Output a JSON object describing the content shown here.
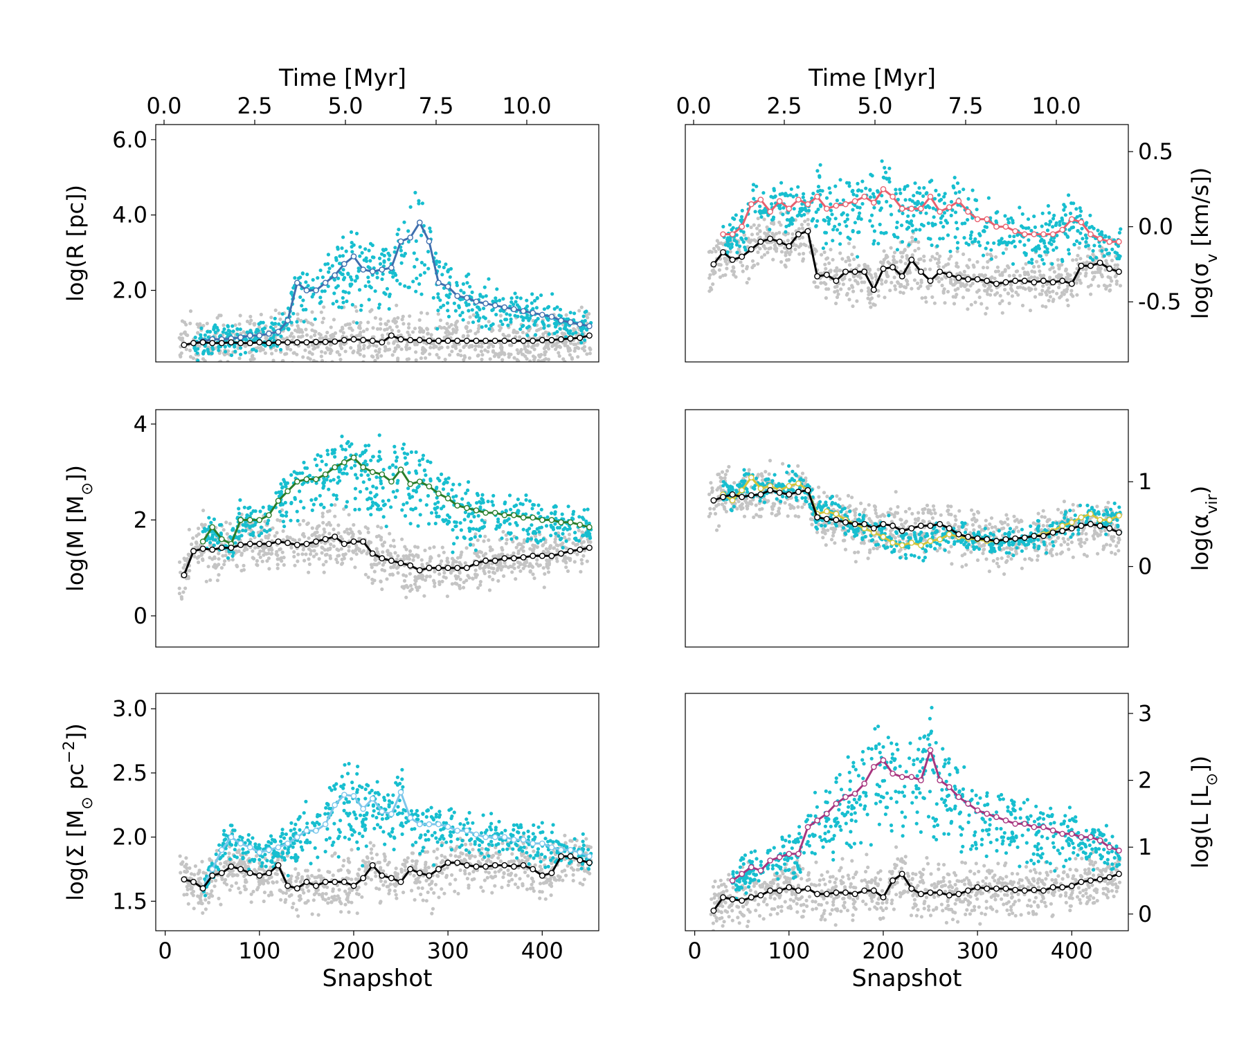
{
  "colors": {
    "gray": "#c4c4c4",
    "cyan": "#17becf",
    "black": "#000000",
    "R": "#3f6fae",
    "sigma": "#e8616f",
    "M": "#2a7d2a",
    "alpha": "#d4c43a",
    "Sigma": "#7cc6ea",
    "L": "#a8367f"
  },
  "chart_data": [
    {
      "id": "R",
      "type": "scatter",
      "ylabel": "log(R [pc])",
      "xlabel": "",
      "time_label": "Time [Myr]",
      "ylim": [
        0.1,
        6.4
      ],
      "xlim": [
        -10,
        460
      ],
      "yticks": [
        "6.0",
        "4.0",
        "2.0"
      ],
      "ytick_values": [
        6.0,
        4.0,
        2.0
      ],
      "xticks": [],
      "time_ticks": [
        "0.0",
        "2.5",
        "5.0",
        "7.5",
        "10.0"
      ],
      "median_x": [
        20,
        30,
        40,
        50,
        60,
        70,
        80,
        90,
        100,
        110,
        120,
        130,
        140,
        150,
        160,
        170,
        180,
        190,
        200,
        210,
        220,
        230,
        240,
        250,
        260,
        270,
        280,
        290,
        300,
        310,
        320,
        330,
        340,
        350,
        360,
        370,
        380,
        390,
        400,
        410,
        420,
        430,
        440,
        450
      ],
      "median_y": [
        0.55,
        0.6,
        0.62,
        0.6,
        0.6,
        0.62,
        0.6,
        0.6,
        0.62,
        0.6,
        0.62,
        0.62,
        0.62,
        0.62,
        0.63,
        0.63,
        0.64,
        0.68,
        0.7,
        0.68,
        0.66,
        0.62,
        0.8,
        0.7,
        0.68,
        0.68,
        0.66,
        0.66,
        0.66,
        0.66,
        0.66,
        0.66,
        0.66,
        0.66,
        0.66,
        0.66,
        0.66,
        0.66,
        0.68,
        0.68,
        0.7,
        0.72,
        0.74,
        0.8
      ],
      "top_x": [
        30,
        40,
        50,
        60,
        70,
        80,
        90,
        100,
        110,
        120,
        130,
        140,
        150,
        160,
        170,
        180,
        190,
        200,
        210,
        220,
        230,
        240,
        250,
        260,
        270,
        280,
        290,
        300,
        310,
        320,
        330,
        340,
        350,
        360,
        370,
        380,
        390,
        400,
        410,
        420,
        430,
        440,
        450
      ],
      "top_y": [
        0.6,
        0.65,
        0.7,
        0.7,
        0.72,
        0.75,
        0.8,
        0.8,
        0.85,
        0.9,
        1.2,
        2.2,
        2.0,
        2.0,
        2.2,
        2.4,
        2.7,
        2.9,
        2.55,
        2.5,
        2.55,
        2.6,
        3.3,
        3.4,
        3.8,
        3.3,
        2.2,
        2.1,
        1.85,
        1.8,
        1.7,
        1.65,
        1.6,
        1.55,
        1.5,
        1.45,
        1.4,
        1.35,
        1.3,
        1.2,
        1.15,
        1.1,
        1.05
      ]
    },
    {
      "id": "sigma",
      "type": "scatter",
      "ylabel": "log(σ_v [km/s])",
      "xlabel": "",
      "time_label": "Time [Myr]",
      "ylim": [
        -0.9,
        0.68
      ],
      "xlim": [
        -10,
        460
      ],
      "yticks": [
        "0.5",
        "0.0",
        "-0.5"
      ],
      "ytick_values": [
        0.5,
        0.0,
        -0.5
      ],
      "xticks": [],
      "time_ticks": [
        "0.0",
        "2.5",
        "5.0",
        "7.5",
        "10.0"
      ],
      "median_x": [
        20,
        30,
        40,
        50,
        60,
        70,
        80,
        90,
        100,
        110,
        120,
        130,
        140,
        150,
        160,
        170,
        180,
        190,
        200,
        210,
        220,
        230,
        240,
        250,
        260,
        270,
        280,
        290,
        300,
        310,
        320,
        330,
        340,
        350,
        360,
        370,
        380,
        390,
        400,
        410,
        420,
        430,
        440,
        450
      ],
      "median_y": [
        -0.25,
        -0.17,
        -0.22,
        -0.2,
        -0.15,
        -0.1,
        -0.08,
        -0.1,
        -0.13,
        -0.05,
        -0.03,
        -0.33,
        -0.32,
        -0.36,
        -0.3,
        -0.3,
        -0.3,
        -0.42,
        -0.28,
        -0.27,
        -0.33,
        -0.22,
        -0.3,
        -0.36,
        -0.3,
        -0.32,
        -0.34,
        -0.35,
        -0.35,
        -0.36,
        -0.38,
        -0.37,
        -0.36,
        -0.36,
        -0.37,
        -0.36,
        -0.37,
        -0.36,
        -0.38,
        -0.26,
        -0.26,
        -0.24,
        -0.28,
        -0.3
      ],
      "top_x": [
        30,
        40,
        50,
        60,
        70,
        80,
        90,
        100,
        110,
        120,
        130,
        140,
        150,
        160,
        170,
        180,
        190,
        200,
        210,
        220,
        230,
        240,
        250,
        260,
        270,
        280,
        290,
        300,
        310,
        320,
        330,
        340,
        350,
        360,
        370,
        380,
        390,
        400,
        410,
        420,
        430,
        440,
        450
      ],
      "top_y": [
        -0.05,
        -0.05,
        0.0,
        0.15,
        0.18,
        0.1,
        0.17,
        0.12,
        0.18,
        0.15,
        0.2,
        0.12,
        0.14,
        0.15,
        0.17,
        0.2,
        0.16,
        0.25,
        0.2,
        0.12,
        0.12,
        0.12,
        0.2,
        0.1,
        0.13,
        0.17,
        0.1,
        0.05,
        0.05,
        0.0,
        0.0,
        -0.03,
        -0.05,
        -0.05,
        -0.05,
        -0.05,
        -0.02,
        0.05,
        0.03,
        -0.05,
        -0.08,
        -0.1,
        -0.1
      ]
    },
    {
      "id": "M",
      "type": "scatter",
      "ylabel": "log(M [M_⊙])",
      "xlabel": "",
      "time_label": "",
      "ylim": [
        -0.65,
        4.3
      ],
      "xlim": [
        -10,
        460
      ],
      "yticks": [
        "4",
        "2",
        "0"
      ],
      "ytick_values": [
        4,
        2,
        0
      ],
      "xticks": [],
      "time_ticks": [],
      "median_x": [
        20,
        30,
        40,
        50,
        60,
        70,
        80,
        90,
        100,
        110,
        120,
        130,
        140,
        150,
        160,
        170,
        180,
        190,
        200,
        210,
        220,
        230,
        240,
        250,
        260,
        270,
        280,
        290,
        300,
        310,
        320,
        330,
        340,
        350,
        360,
        370,
        380,
        390,
        400,
        410,
        420,
        430,
        440,
        450
      ],
      "median_y": [
        0.85,
        1.35,
        1.4,
        1.38,
        1.42,
        1.42,
        1.48,
        1.5,
        1.5,
        1.5,
        1.55,
        1.52,
        1.48,
        1.5,
        1.55,
        1.6,
        1.65,
        1.5,
        1.55,
        1.55,
        1.3,
        1.2,
        1.15,
        1.1,
        1.05,
        0.95,
        1.0,
        1.0,
        1.0,
        1.0,
        1.0,
        1.1,
        1.15,
        1.15,
        1.2,
        1.2,
        1.22,
        1.25,
        1.25,
        1.25,
        1.3,
        1.35,
        1.38,
        1.42
      ],
      "top_x": [
        40,
        50,
        60,
        70,
        80,
        90,
        100,
        110,
        120,
        130,
        140,
        150,
        160,
        170,
        180,
        190,
        200,
        210,
        220,
        230,
        240,
        250,
        260,
        270,
        280,
        290,
        300,
        310,
        320,
        330,
        340,
        350,
        360,
        370,
        380,
        390,
        400,
        410,
        420,
        430,
        440,
        450
      ],
      "top_y": [
        1.55,
        1.85,
        1.6,
        1.5,
        2.0,
        2.0,
        2.0,
        2.1,
        2.4,
        2.6,
        2.8,
        2.85,
        2.85,
        2.95,
        3.1,
        3.2,
        3.3,
        3.1,
        3.0,
        2.95,
        2.8,
        3.05,
        2.75,
        2.8,
        2.7,
        2.55,
        2.45,
        2.3,
        2.25,
        2.2,
        2.15,
        2.15,
        2.1,
        2.1,
        2.05,
        2.05,
        2.0,
        2.0,
        1.95,
        1.95,
        1.9,
        1.85
      ]
    },
    {
      "id": "alpha",
      "type": "scatter",
      "ylabel": "log(α_vir)",
      "xlabel": "",
      "time_label": "",
      "ylim": [
        -0.95,
        1.85
      ],
      "xlim": [
        -10,
        460
      ],
      "yticks": [
        "1",
        "0"
      ],
      "ytick_values": [
        1,
        0
      ],
      "xticks": [],
      "time_ticks": [],
      "median_x": [
        20,
        30,
        40,
        50,
        60,
        70,
        80,
        90,
        100,
        110,
        120,
        130,
        140,
        150,
        160,
        170,
        180,
        190,
        200,
        210,
        220,
        230,
        240,
        250,
        260,
        270,
        280,
        290,
        300,
        310,
        320,
        330,
        340,
        350,
        360,
        370,
        380,
        390,
        400,
        410,
        420,
        430,
        440,
        450
      ],
      "median_y": [
        0.78,
        0.82,
        0.85,
        0.82,
        0.84,
        0.85,
        0.9,
        0.87,
        0.85,
        0.88,
        0.9,
        0.58,
        0.56,
        0.55,
        0.52,
        0.5,
        0.5,
        0.45,
        0.5,
        0.48,
        0.42,
        0.45,
        0.48,
        0.48,
        0.5,
        0.45,
        0.38,
        0.35,
        0.33,
        0.32,
        0.3,
        0.32,
        0.33,
        0.34,
        0.36,
        0.36,
        0.4,
        0.42,
        0.45,
        0.48,
        0.5,
        0.48,
        0.45,
        0.4
      ],
      "top_x": [
        30,
        40,
        50,
        60,
        70,
        80,
        90,
        100,
        110,
        120,
        130,
        140,
        150,
        160,
        170,
        180,
        190,
        200,
        210,
        220,
        230,
        240,
        250,
        260,
        270,
        280,
        290,
        300,
        310,
        320,
        330,
        340,
        350,
        360,
        370,
        380,
        390,
        400,
        410,
        420,
        430,
        440,
        450
      ],
      "top_y": [
        0.85,
        0.78,
        0.9,
        1.05,
        0.92,
        0.95,
        0.9,
        0.95,
        0.98,
        0.9,
        0.62,
        0.65,
        0.62,
        0.55,
        0.5,
        0.45,
        0.4,
        0.35,
        0.28,
        0.25,
        0.28,
        0.25,
        0.3,
        0.32,
        0.38,
        0.35,
        0.33,
        0.32,
        0.3,
        0.3,
        0.32,
        0.33,
        0.34,
        0.36,
        0.38,
        0.42,
        0.48,
        0.52,
        0.58,
        0.62,
        0.55,
        0.55,
        0.6
      ]
    },
    {
      "id": "Sigma",
      "type": "scatter",
      "ylabel": "log(Σ [M_⊙ pc^−2])",
      "xlabel": "Snapshot",
      "time_label": "",
      "ylim": [
        1.27,
        3.12
      ],
      "xlim": [
        -10,
        460
      ],
      "yticks": [
        "3.0",
        "2.5",
        "2.0",
        "1.5"
      ],
      "ytick_values": [
        3.0,
        2.5,
        2.0,
        1.5
      ],
      "xticks": [
        "0",
        "100",
        "200",
        "300",
        "400"
      ],
      "xtick_values": [
        0,
        100,
        200,
        300,
        400
      ],
      "time_ticks": [],
      "median_x": [
        20,
        30,
        40,
        50,
        60,
        70,
        80,
        90,
        100,
        110,
        120,
        130,
        140,
        150,
        160,
        170,
        180,
        190,
        200,
        210,
        220,
        230,
        240,
        250,
        260,
        270,
        280,
        290,
        300,
        310,
        320,
        330,
        340,
        350,
        360,
        370,
        380,
        390,
        400,
        410,
        420,
        430,
        440,
        450
      ],
      "median_y": [
        1.67,
        1.65,
        1.6,
        1.7,
        1.72,
        1.77,
        1.75,
        1.72,
        1.7,
        1.72,
        1.78,
        1.62,
        1.6,
        1.65,
        1.62,
        1.65,
        1.65,
        1.65,
        1.62,
        1.68,
        1.78,
        1.7,
        1.68,
        1.65,
        1.75,
        1.72,
        1.7,
        1.75,
        1.8,
        1.8,
        1.78,
        1.77,
        1.77,
        1.78,
        1.78,
        1.77,
        1.78,
        1.75,
        1.7,
        1.72,
        1.85,
        1.85,
        1.82,
        1.8
      ],
      "top_x": [
        40,
        50,
        60,
        70,
        80,
        90,
        100,
        110,
        120,
        130,
        140,
        150,
        160,
        170,
        180,
        190,
        200,
        210,
        220,
        230,
        240,
        250,
        260,
        270,
        280,
        290,
        300,
        310,
        320,
        330,
        340,
        350,
        360,
        370,
        380,
        390,
        400,
        410,
        420,
        430,
        440,
        450
      ],
      "top_y": [
        1.6,
        1.75,
        1.9,
        2.0,
        1.95,
        1.92,
        1.88,
        1.9,
        1.92,
        1.95,
        2.0,
        2.05,
        2.05,
        2.1,
        2.25,
        2.33,
        2.32,
        2.22,
        2.3,
        2.2,
        2.18,
        2.35,
        2.15,
        2.1,
        2.1,
        2.1,
        2.08,
        2.05,
        2.05,
        2.02,
        2.0,
        2.0,
        2.0,
        1.98,
        1.98,
        1.95,
        1.95,
        1.92,
        1.9,
        1.9,
        1.88,
        1.85
      ]
    },
    {
      "id": "L",
      "type": "scatter",
      "ylabel": "log(L [L_⊙])",
      "xlabel": "Snapshot",
      "time_label": "",
      "ylim": [
        -0.25,
        3.3
      ],
      "xlim": [
        -10,
        460
      ],
      "yticks": [
        "3",
        "2",
        "1",
        "0"
      ],
      "ytick_values": [
        3,
        2,
        1,
        0
      ],
      "xticks": [
        "0",
        "100",
        "200",
        "300",
        "400"
      ],
      "xtick_values": [
        0,
        100,
        200,
        300,
        400
      ],
      "time_ticks": [],
      "median_x": [
        20,
        30,
        40,
        50,
        60,
        70,
        80,
        90,
        100,
        110,
        120,
        130,
        140,
        150,
        160,
        170,
        180,
        190,
        200,
        210,
        220,
        230,
        240,
        250,
        260,
        270,
        280,
        290,
        300,
        310,
        320,
        330,
        340,
        350,
        360,
        370,
        380,
        390,
        400,
        410,
        420,
        430,
        440,
        450
      ],
      "median_y": [
        0.05,
        0.25,
        0.22,
        0.2,
        0.25,
        0.28,
        0.35,
        0.35,
        0.4,
        0.35,
        0.38,
        0.3,
        0.3,
        0.32,
        0.32,
        0.3,
        0.35,
        0.35,
        0.25,
        0.5,
        0.6,
        0.38,
        0.3,
        0.32,
        0.32,
        0.28,
        0.3,
        0.35,
        0.4,
        0.38,
        0.38,
        0.38,
        0.36,
        0.35,
        0.36,
        0.35,
        0.4,
        0.4,
        0.42,
        0.48,
        0.5,
        0.52,
        0.55,
        0.6
      ],
      "top_x": [
        40,
        50,
        60,
        70,
        80,
        90,
        100,
        110,
        120,
        130,
        140,
        150,
        160,
        170,
        180,
        190,
        200,
        210,
        220,
        230,
        240,
        250,
        260,
        270,
        280,
        290,
        300,
        310,
        320,
        330,
        340,
        350,
        360,
        370,
        380,
        390,
        400,
        410,
        420,
        430,
        440,
        450
      ],
      "top_y": [
        0.5,
        0.6,
        0.7,
        0.65,
        0.8,
        0.85,
        0.9,
        0.9,
        1.3,
        1.4,
        1.5,
        1.65,
        1.75,
        1.8,
        1.95,
        2.2,
        2.3,
        2.1,
        2.05,
        2.05,
        2.0,
        2.45,
        2.0,
        1.9,
        1.75,
        1.65,
        1.55,
        1.5,
        1.45,
        1.4,
        1.35,
        1.35,
        1.3,
        1.3,
        1.25,
        1.2,
        1.2,
        1.15,
        1.15,
        1.1,
        1.0,
        0.95
      ]
    }
  ]
}
